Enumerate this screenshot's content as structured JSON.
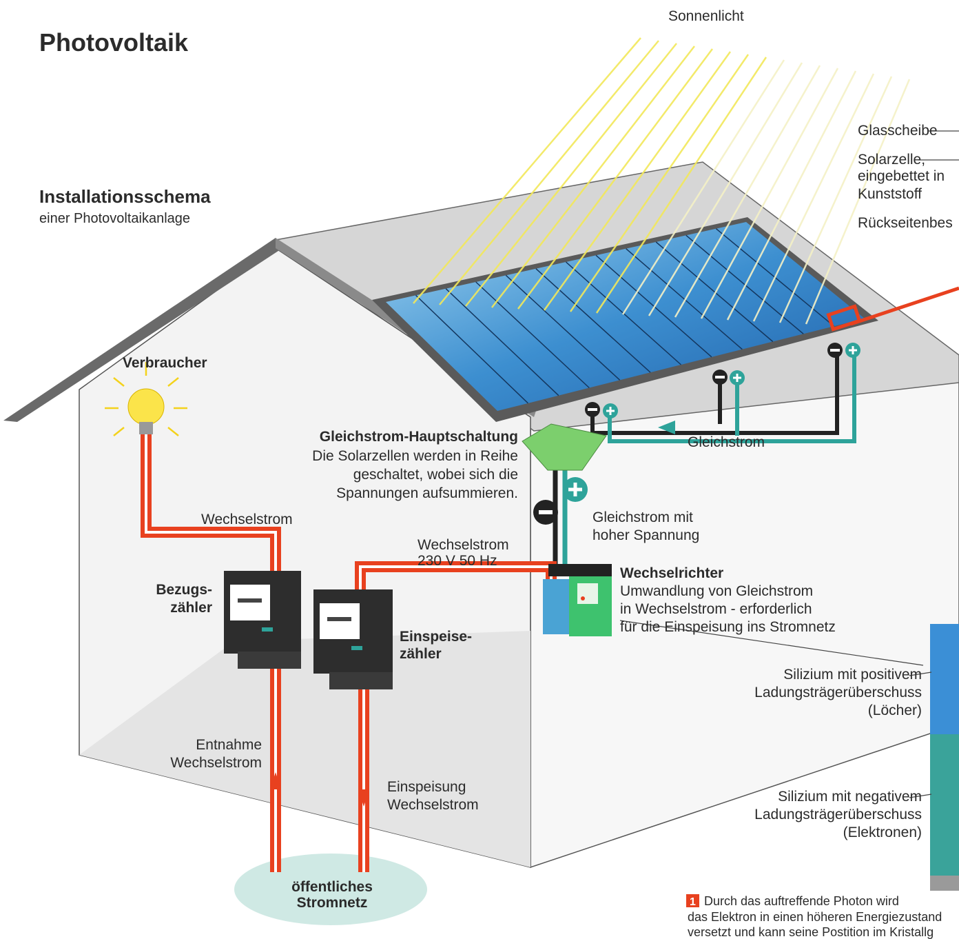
{
  "title": "Photovoltaik",
  "sunlight": "Sonnenlicht",
  "module_layers": {
    "glass": "Glasscheibe",
    "cell": [
      "Solarzelle,",
      "eingebettet in",
      "Kunststoff"
    ],
    "back": "Rückseitenbes"
  },
  "subtitle": {
    "heading": "Installationsschema",
    "text": "einer Photovoltaikanlage"
  },
  "labels": {
    "consumer": "Verbraucher",
    "main_switch": {
      "heading": "Gleichstrom-Hauptschaltung",
      "text": [
        "Die Solarzellen werden in Reihe",
        "geschaltet, wobei sich die",
        "Spannungen aufsummieren."
      ]
    },
    "direct_current": "Gleichstrom",
    "alternating_current": "Wechselstrom",
    "high_voltage_dc": [
      "Gleichstrom mit",
      "hoher Spannung"
    ],
    "ac_grid_spec": [
      "Wechselstrom",
      "230 V 50 Hz"
    ],
    "inverter": {
      "heading": "Wechselrichter",
      "text": [
        "Umwandlung von Gleichstrom",
        "in Wechselstrom - erforderlich",
        "für die Einspeisung ins Stromnetz"
      ]
    },
    "consumption_meter": [
      "Bezugs-",
      "zähler"
    ],
    "feed_in_meter": [
      "Einspeise-",
      "zähler"
    ],
    "silicon_positive": [
      "Silizium mit positivem",
      "Ladungsträgerüberschuss",
      "(Löcher)"
    ],
    "withdrawal": [
      "Entnahme",
      "Wechselstrom"
    ],
    "feed_in": [
      "Einspeisung",
      "Wechselstrom"
    ],
    "silicon_negative": [
      "Silizium mit negativem",
      "Ladungsträgerüberschuss",
      "(Elektronen)"
    ],
    "public_grid": [
      "öffentliches",
      "Stromnetz"
    ]
  },
  "footnote": {
    "number": "1",
    "text": [
      "Durch das auftreffende Photon wird",
      "das Elektron in einen höheren Energiezustand",
      "versetzt und kann seine Postition im Kristallg"
    ]
  }
}
